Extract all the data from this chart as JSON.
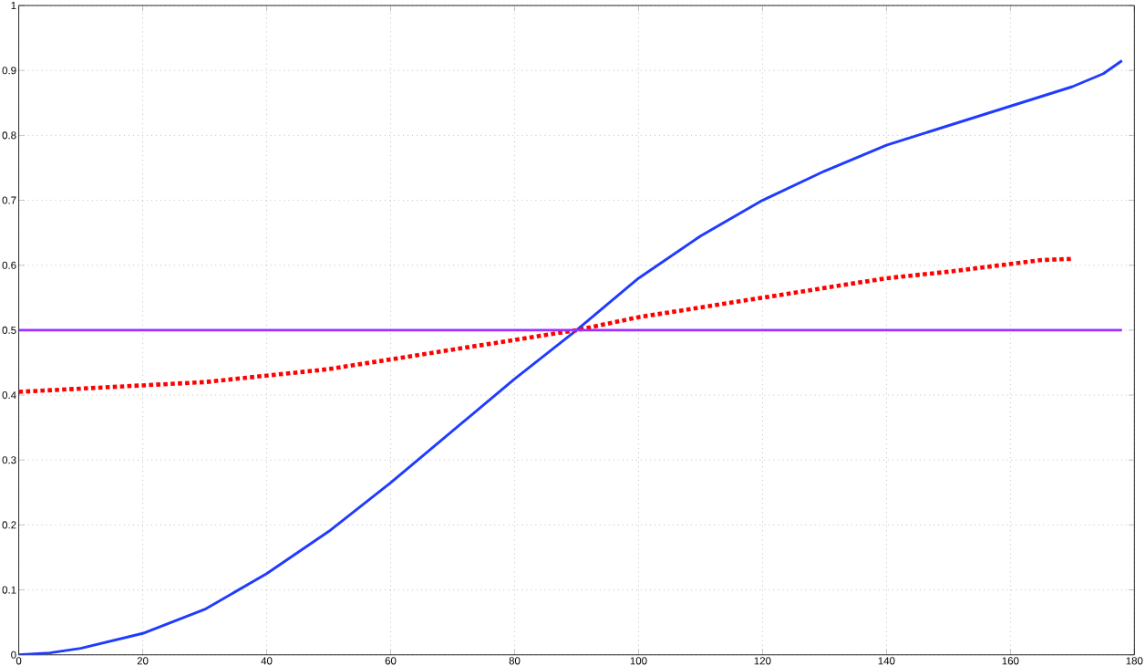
{
  "chart_data": {
    "type": "line",
    "xlim": [
      0,
      180
    ],
    "ylim": [
      0,
      1
    ],
    "xticks": [
      0,
      20,
      40,
      60,
      80,
      100,
      120,
      140,
      160,
      180
    ],
    "yticks": [
      0,
      0.1,
      0.2,
      0.3,
      0.4,
      0.5,
      0.6,
      0.7,
      0.8,
      0.9,
      1
    ],
    "grid": true,
    "marker": "none",
    "series": [
      {
        "color": "#1f3bff",
        "line_style": "solid",
        "x": [
          0,
          5,
          10,
          20,
          30,
          40,
          50,
          60,
          70,
          80,
          90,
          100,
          110,
          120,
          130,
          140,
          150,
          160,
          170,
          175,
          178
        ],
        "values": [
          0,
          0.003,
          0.01,
          0.033,
          0.07,
          0.125,
          0.19,
          0.265,
          0.345,
          0.425,
          0.5,
          0.58,
          0.645,
          0.7,
          0.745,
          0.785,
          0.815,
          0.845,
          0.875,
          0.895,
          0.915
        ]
      },
      {
        "color": "#ff0000",
        "line_style": "dotted",
        "x": [
          0,
          10,
          20,
          30,
          40,
          50,
          60,
          70,
          80,
          90,
          100,
          110,
          120,
          130,
          140,
          150,
          160,
          165,
          170
        ],
        "values": [
          0.405,
          0.41,
          0.415,
          0.42,
          0.43,
          0.44,
          0.455,
          0.47,
          0.485,
          0.5,
          0.52,
          0.535,
          0.55,
          0.565,
          0.58,
          0.59,
          0.602,
          0.608,
          0.61
        ]
      },
      {
        "color": "#9b30ff",
        "line_style": "solid",
        "x": [
          0,
          178
        ],
        "values": [
          0.5,
          0.5
        ]
      }
    ]
  }
}
